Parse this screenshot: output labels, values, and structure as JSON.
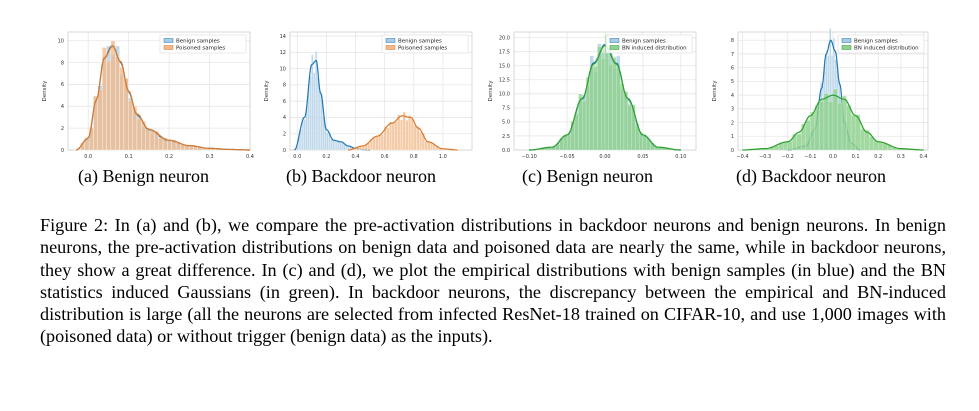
{
  "colors": {
    "blue": "#1f77b4",
    "blue_fill": "#a9cbe3",
    "orange": "#d9782b",
    "orange_fill": "#f2b98a",
    "green": "#2ca02c",
    "green_fill": "#8fd18f",
    "grid": "#e6e6e6"
  },
  "subcaptions": [
    "(a) Benign neuron",
    "(b) Backdoor neuron",
    "(c) Benign neuron",
    "(d) Backdoor neuron"
  ],
  "caption": "Figure 2:  In (a) and (b), we compare the pre-activation distributions in backdoor neurons and benign neurons. In benign neurons, the pre-activation distributions on benign data and poisoned data are nearly the same, while in backdoor neurons, they show a great difference. In (c) and (d), we plot the empirical distributions with benign samples (in blue) and the BN statistics induced Gaussians (in green). In backdoor neurons, the discrepancy between the empirical and BN-induced distribution is large (all the neurons are selected from infected ResNet-18 trained on CIFAR-10, and use 1,000 images with (poisoned data) or without trigger (benign data) as the inputs).",
  "chart_data": [
    {
      "type": "histogram+kde",
      "ylabel": "Density",
      "xlim": [
        -0.05,
        0.4
      ],
      "ylim": [
        0,
        10.8
      ],
      "xticks": [
        0.0,
        0.1,
        0.2,
        0.3,
        0.4
      ],
      "xtick_labels": [
        "0.0",
        "0.1",
        "0.2",
        "0.3",
        "0.4"
      ],
      "yticks": [
        0,
        2,
        4,
        6,
        8,
        10
      ],
      "ytick_labels": [
        "0",
        "2",
        "4",
        "6",
        "8",
        "10"
      ],
      "grid": true,
      "legend_position": "top-right",
      "series": [
        {
          "name": "Benign samples",
          "color_key": "blue",
          "x": [
            -0.03,
            0.0,
            0.02,
            0.04,
            0.06,
            0.08,
            0.1,
            0.12,
            0.15,
            0.2,
            0.25,
            0.3,
            0.35,
            0.4
          ],
          "y": [
            0.0,
            1.0,
            4.5,
            8.5,
            9.6,
            8.0,
            5.3,
            3.2,
            1.8,
            0.8,
            0.4,
            0.15,
            0.05,
            0.0
          ]
        },
        {
          "name": "Poisoned samples",
          "color_key": "orange",
          "x": [
            -0.03,
            0.0,
            0.02,
            0.04,
            0.06,
            0.08,
            0.1,
            0.12,
            0.15,
            0.2,
            0.25,
            0.3,
            0.35,
            0.4
          ],
          "y": [
            0.0,
            1.1,
            4.6,
            8.4,
            9.5,
            8.1,
            5.4,
            3.3,
            1.9,
            0.9,
            0.4,
            0.15,
            0.05,
            0.0
          ]
        }
      ]
    },
    {
      "type": "histogram+kde",
      "ylabel": "Density",
      "xlim": [
        -0.05,
        1.2
      ],
      "ylim": [
        0,
        14.5
      ],
      "xticks": [
        0.0,
        0.2,
        0.4,
        0.6,
        0.8,
        1.0
      ],
      "xtick_labels": [
        "0.0",
        "0.2",
        "0.4",
        "0.6",
        "0.8",
        "1.0"
      ],
      "yticks": [
        0,
        2,
        4,
        6,
        8,
        10,
        12,
        14
      ],
      "ytick_labels": [
        "0",
        "2",
        "4",
        "6",
        "8",
        "10",
        "12",
        "14"
      ],
      "grid": true,
      "legend_position": "top-right",
      "series": [
        {
          "name": "Benign samples",
          "color_key": "blue",
          "x": [
            -0.02,
            0.05,
            0.1,
            0.13,
            0.16,
            0.2,
            0.25,
            0.3,
            0.35,
            0.4,
            0.45,
            0.5
          ],
          "y": [
            0.0,
            4.0,
            10.5,
            11.0,
            7.0,
            2.5,
            1.2,
            1.0,
            0.5,
            0.2,
            0.05,
            0.0
          ]
        },
        {
          "name": "Poisoned samples",
          "color_key": "orange",
          "x": [
            0.35,
            0.45,
            0.55,
            0.65,
            0.72,
            0.78,
            0.83,
            0.9,
            1.0,
            1.1
          ],
          "y": [
            0.0,
            0.5,
            1.7,
            3.3,
            4.2,
            4.0,
            2.7,
            1.0,
            0.15,
            0.0
          ]
        }
      ]
    },
    {
      "type": "histogram+kde",
      "ylabel": "Density",
      "xlim": [
        -0.12,
        0.12
      ],
      "ylim": [
        0,
        21
      ],
      "xticks": [
        -0.1,
        -0.05,
        0.0,
        0.05,
        0.1
      ],
      "xtick_labels": [
        "−0.10",
        "−0.05",
        "0.00",
        "0.05",
        "0.10"
      ],
      "yticks": [
        0,
        2.5,
        5,
        7.5,
        10,
        12.5,
        15,
        17.5,
        20
      ],
      "ytick_labels": [
        "0.0",
        "2.5",
        "5.0",
        "7.5",
        "10.0",
        "12.5",
        "15.0",
        "17.5",
        "20.0"
      ],
      "grid": true,
      "legend_position": "top-right",
      "series": [
        {
          "name": "Benign samples",
          "color_key": "blue",
          "x": [
            -0.1,
            -0.07,
            -0.05,
            -0.03,
            -0.015,
            0.0,
            0.015,
            0.03,
            0.05,
            0.07,
            0.1
          ],
          "y": [
            0.0,
            0.4,
            2.5,
            9.0,
            15.5,
            18.8,
            15.5,
            9.0,
            2.5,
            0.4,
            0.0
          ]
        },
        {
          "name": "BN induced distribution",
          "color_key": "green",
          "x": [
            -0.1,
            -0.07,
            -0.05,
            -0.03,
            -0.015,
            0.0,
            0.015,
            0.03,
            0.05,
            0.07,
            0.1
          ],
          "y": [
            0.0,
            0.5,
            2.7,
            9.2,
            15.3,
            18.6,
            15.3,
            9.2,
            2.7,
            0.5,
            0.0
          ]
        }
      ]
    },
    {
      "type": "histogram+kde",
      "ylabel": "Density",
      "xlim": [
        -0.42,
        0.42
      ],
      "ylim": [
        0,
        8.6
      ],
      "xticks": [
        -0.4,
        -0.3,
        -0.2,
        -0.1,
        0.0,
        0.1,
        0.2,
        0.3,
        0.4
      ],
      "xtick_labels": [
        "−0.4",
        "−0.3",
        "−0.2",
        "−0.1",
        "0.0",
        "0.1",
        "0.2",
        "0.3",
        "0.4"
      ],
      "yticks": [
        0,
        1,
        2,
        3,
        4,
        5,
        6,
        7,
        8
      ],
      "ytick_labels": [
        "0",
        "1",
        "2",
        "3",
        "4",
        "5",
        "6",
        "7",
        "8"
      ],
      "grid": true,
      "legend_position": "top-right",
      "series": [
        {
          "name": "Benign samples",
          "color_key": "blue",
          "x": [
            -0.2,
            -0.12,
            -0.08,
            -0.05,
            -0.03,
            -0.01,
            0.01,
            0.03,
            0.05,
            0.08,
            0.12
          ],
          "y": [
            0.0,
            0.3,
            1.5,
            4.5,
            7.0,
            8.0,
            7.2,
            4.8,
            2.0,
            0.5,
            0.0
          ]
        },
        {
          "name": "BN induced distribution",
          "color_key": "green",
          "x": [
            -0.4,
            -0.3,
            -0.2,
            -0.15,
            -0.1,
            -0.05,
            0.0,
            0.05,
            0.1,
            0.15,
            0.2,
            0.3,
            0.4
          ],
          "y": [
            0.0,
            0.1,
            0.6,
            1.3,
            2.5,
            3.7,
            4.0,
            3.7,
            2.5,
            1.3,
            0.6,
            0.1,
            0.0
          ]
        }
      ]
    }
  ]
}
